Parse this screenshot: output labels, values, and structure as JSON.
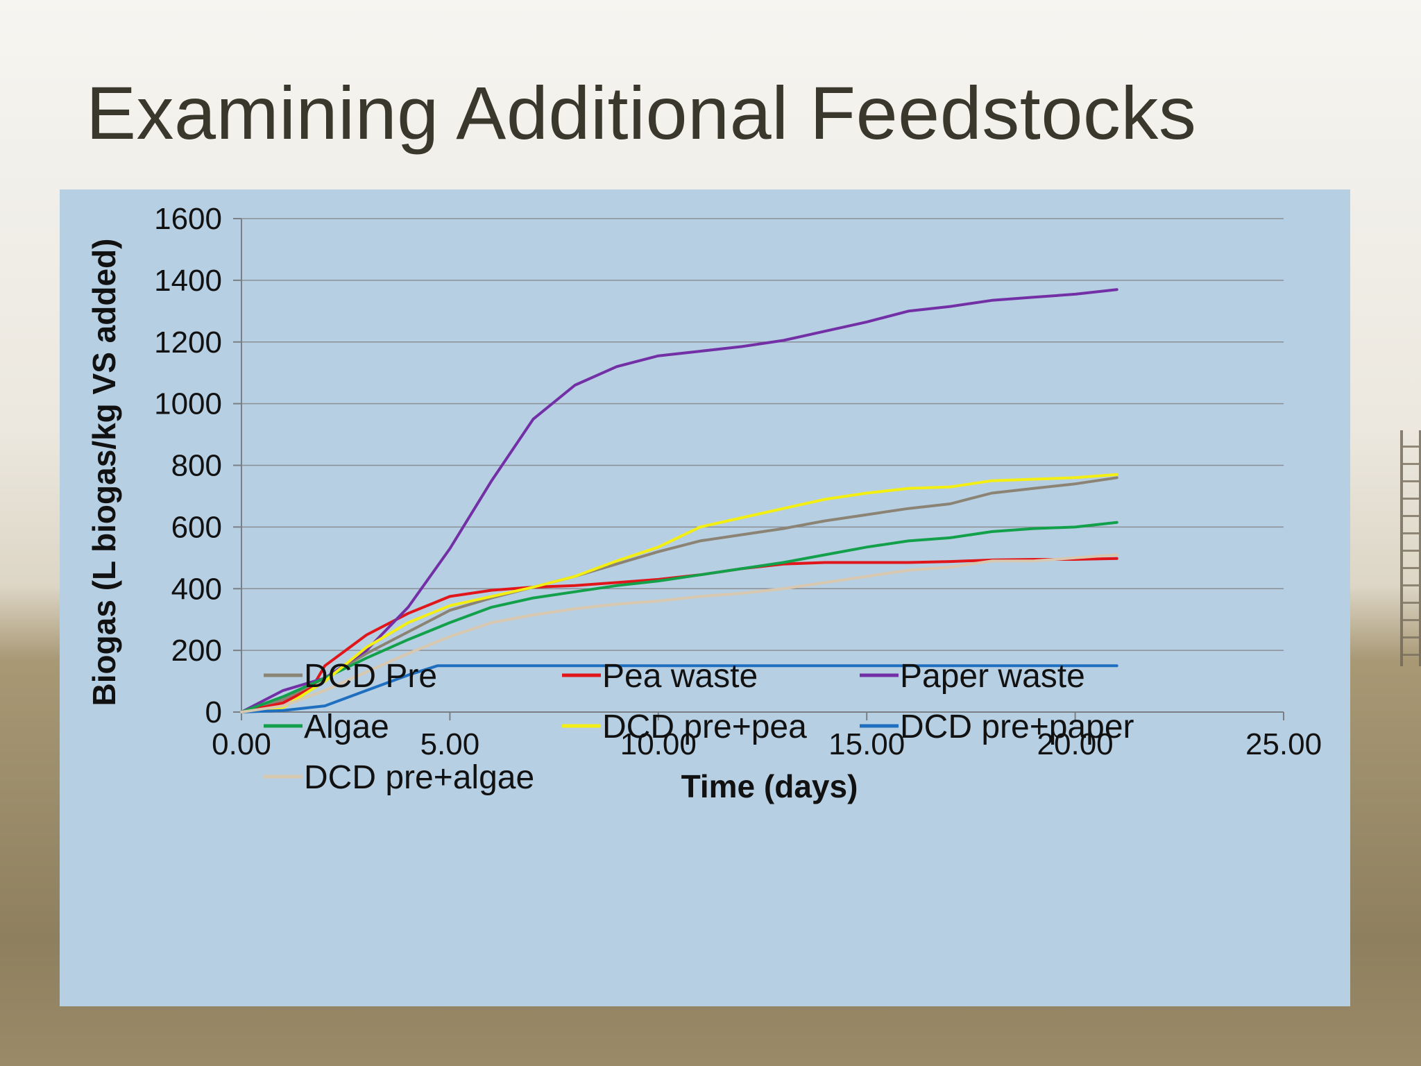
{
  "slide": {
    "title": "Examining Additional Feedstocks"
  },
  "chart_data": {
    "type": "line",
    "title": "",
    "xlabel": "Time (days)",
    "ylabel": "Biogas  (L biogas/kg VS added)",
    "xlim": [
      0,
      25
    ],
    "ylim": [
      0,
      1600
    ],
    "xticks": [
      "0.00",
      "5.00",
      "10.00",
      "15.00",
      "20.00",
      "25.00"
    ],
    "yticks": [
      "0",
      "200",
      "400",
      "600",
      "800",
      "1000",
      "1200",
      "1400",
      "1600"
    ],
    "grid": "horizontal",
    "legend_position": "bottom",
    "background_color": "#b7cfe2",
    "series": [
      {
        "name": "DCD Pre",
        "color": "#8b8474",
        "x": [
          0,
          1,
          2,
          3,
          4,
          5,
          6,
          7,
          8,
          9,
          10,
          11,
          12,
          13,
          14,
          15,
          16,
          17,
          18,
          19,
          20,
          21
        ],
        "y": [
          0,
          40,
          110,
          190,
          260,
          330,
          370,
          405,
          440,
          480,
          520,
          555,
          575,
          595,
          620,
          640,
          660,
          675,
          710,
          725,
          740,
          760
        ]
      },
      {
        "name": "Pea waste",
        "color": "#e0161b",
        "x": [
          0,
          1,
          1.7,
          2,
          3,
          4,
          5,
          6,
          7,
          8,
          9,
          10,
          11,
          12,
          13,
          14,
          15,
          16,
          17,
          18,
          19,
          20,
          21
        ],
        "y": [
          0,
          30,
          80,
          150,
          250,
          320,
          375,
          395,
          405,
          410,
          420,
          430,
          445,
          465,
          480,
          485,
          485,
          485,
          488,
          493,
          495,
          495,
          498
        ]
      },
      {
        "name": "Paper waste",
        "color": "#7330a6",
        "x": [
          0,
          1,
          2,
          3,
          4,
          5,
          6,
          7,
          8,
          9,
          10,
          11,
          12,
          13,
          14,
          15,
          16,
          17,
          18,
          19,
          20,
          21
        ],
        "y": [
          0,
          70,
          110,
          200,
          340,
          530,
          750,
          950,
          1060,
          1120,
          1155,
          1170,
          1185,
          1205,
          1235,
          1265,
          1300,
          1315,
          1335,
          1345,
          1355,
          1370
        ]
      },
      {
        "name": "Algae",
        "color": "#12a04a",
        "x": [
          0,
          1,
          2,
          3,
          4,
          5,
          6,
          7,
          8,
          9,
          10,
          11,
          12,
          13,
          14,
          15,
          16,
          17,
          18,
          19,
          20,
          21
        ],
        "y": [
          0,
          50,
          110,
          175,
          235,
          290,
          340,
          370,
          390,
          410,
          425,
          445,
          465,
          485,
          510,
          535,
          555,
          565,
          585,
          595,
          600,
          615
        ]
      },
      {
        "name": "DCD pre+pea",
        "color": "#f4ef12",
        "x": [
          0,
          1,
          2,
          3,
          4,
          5,
          6,
          7,
          8,
          9,
          10,
          11,
          12,
          13,
          14,
          15,
          16,
          17,
          18,
          19,
          20,
          21
        ],
        "y": [
          0,
          15,
          100,
          210,
          290,
          345,
          375,
          405,
          440,
          490,
          535,
          600,
          630,
          660,
          690,
          710,
          725,
          730,
          750,
          755,
          760,
          770
        ]
      },
      {
        "name": "DCD pre+paper",
        "color": "#1f6fc0",
        "x": [
          0,
          1,
          2,
          3,
          4,
          4.7,
          5,
          10,
          15,
          20,
          21
        ],
        "y": [
          0,
          5,
          20,
          70,
          120,
          150,
          150,
          150,
          150,
          150,
          150
        ]
      },
      {
        "name": "DCD pre+algae",
        "color": "#d8c8b0",
        "x": [
          0,
          1,
          2,
          3,
          4,
          5,
          6,
          7,
          8,
          9,
          10,
          11,
          12,
          13,
          14,
          15,
          16,
          17,
          18,
          19,
          20,
          21
        ],
        "y": [
          0,
          20,
          70,
          130,
          190,
          245,
          290,
          315,
          335,
          350,
          360,
          375,
          385,
          400,
          420,
          440,
          460,
          470,
          490,
          490,
          500,
          510
        ]
      }
    ]
  }
}
